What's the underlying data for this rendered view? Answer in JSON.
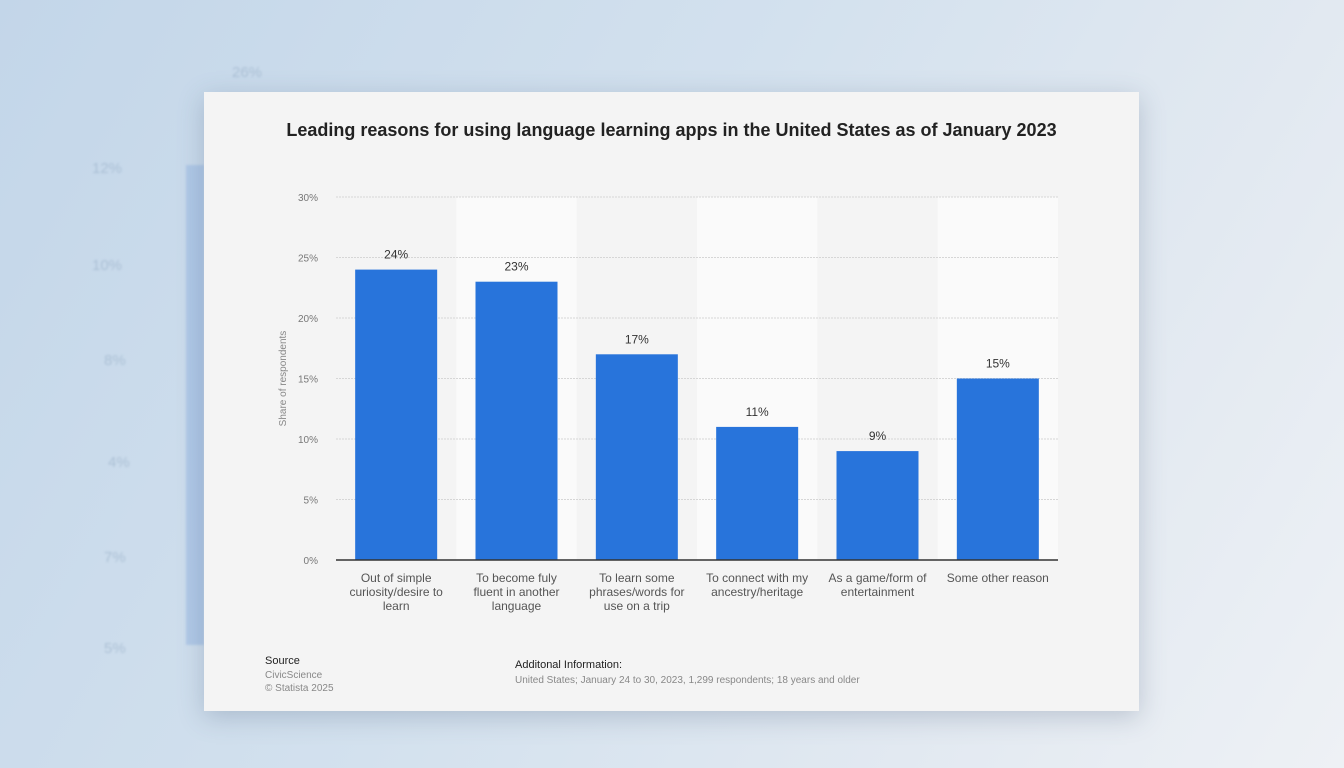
{
  "background_ghost_labels": [
    "26%",
    "12%",
    "10%",
    "8%",
    "4%",
    "7%",
    "5%"
  ],
  "chart_data": {
    "type": "bar",
    "title": "Leading reasons for using language learning apps in the United States as of January 2023",
    "ylabel": "Share of respondents",
    "xlabel": "",
    "categories": [
      "Out of simple curiosity/desire to learn",
      "To become fuly fluent in another language",
      "To learn some phrases/words for use on a trip",
      "To connect with my ancestry/heritage",
      "As a game/form of entertainment",
      "Some other reason"
    ],
    "values": [
      24,
      23,
      17,
      11,
      9,
      15
    ],
    "data_labels": [
      "24%",
      "23%",
      "17%",
      "11%",
      "9%",
      "15%"
    ],
    "ylim": [
      0,
      30
    ],
    "yticks": [
      "0%",
      "5%",
      "10%",
      "15%",
      "20%",
      "25%",
      "30%"
    ],
    "grid": true,
    "bar_color": "#2874db"
  },
  "footer": {
    "source_label": "Source",
    "source": "CivicScience",
    "copyright": "© Statista 2025",
    "additional_label": "Additonal Information:",
    "additional_text": "United States; January 24 to 30, 2023, 1,299 respondents; 18 years and older"
  }
}
